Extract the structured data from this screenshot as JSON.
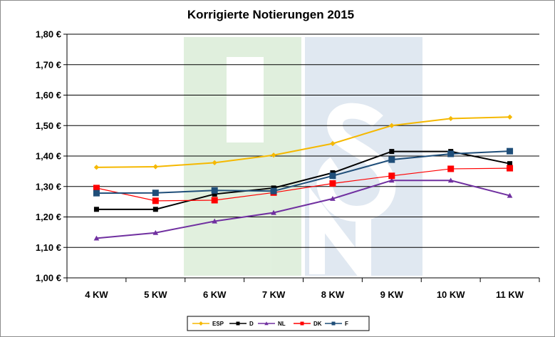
{
  "chart_data": {
    "type": "line",
    "title": "Korrigierte Notierungen 2015",
    "xlabel": "",
    "ylabel": "",
    "categories": [
      "4 KW",
      "5 KW",
      "6 KW",
      "7 KW",
      "8 KW",
      "9 KW",
      "10 KW",
      "11 KW"
    ],
    "yticks": [
      "1,00 €",
      "1,10 €",
      "1,20 €",
      "1,30 €",
      "1,40 €",
      "1,50 €",
      "1,60 €",
      "1,70 €",
      "1,80 €"
    ],
    "ylim": [
      1.0,
      1.8
    ],
    "grid": true,
    "legend_position": "bottom",
    "series": [
      {
        "name": "ESP",
        "color": "#f5b800",
        "marker": "diamond",
        "values": [
          1.363,
          1.365,
          1.378,
          1.403,
          1.441,
          1.5,
          1.523,
          1.528
        ]
      },
      {
        "name": "D",
        "color": "#000000",
        "marker": "square",
        "values": [
          1.225,
          1.225,
          1.275,
          1.295,
          1.345,
          1.415,
          1.415,
          1.375
        ]
      },
      {
        "name": "NL",
        "color": "#7030a0",
        "marker": "triangle",
        "values": [
          1.13,
          1.148,
          1.186,
          1.214,
          1.26,
          1.32,
          1.32,
          1.27
        ]
      },
      {
        "name": "DK",
        "color": "#ff0000",
        "marker": "square",
        "values": [
          1.295,
          1.253,
          1.255,
          1.28,
          1.31,
          1.335,
          1.358,
          1.36
        ]
      },
      {
        "name": "F",
        "color": "#1f4e79",
        "marker": "square",
        "values": [
          1.278,
          1.279,
          1.287,
          1.285,
          1.335,
          1.388,
          1.407,
          1.416
        ]
      }
    ]
  }
}
